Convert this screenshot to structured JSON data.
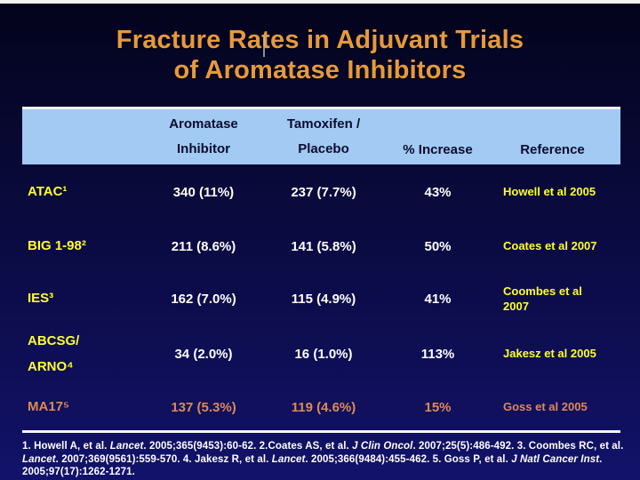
{
  "slide": {
    "title": "Fracture Rates in Adjuvant Trials\nof Aromatase Inhibitors"
  },
  "table": {
    "headers": {
      "trial": "",
      "ai": "Aromatase\nInhibitor",
      "tam": "Tamoxifen /\nPlacebo",
      "increase": "% Increase",
      "reference": "Reference"
    },
    "rows": [
      {
        "trial": "ATAC¹",
        "ai": "340 (11%)",
        "tam": "237 (7.7%)",
        "increase": "43%",
        "reference": "Howell et al 2005"
      },
      {
        "trial": "BIG 1-98²",
        "ai": "211 (8.6%)",
        "tam": "141 (5.8%)",
        "increase": "50%",
        "reference": "Coates et al 2007"
      },
      {
        "trial": "IES³",
        "ai": "162 (7.0%)",
        "tam": "115 (4.9%)",
        "increase": "41%",
        "reference": "Coombes et al 2007"
      },
      {
        "trial": "ABCSG/\nARNO⁴",
        "ai": "34 (2.0%)",
        "tam": "16 (1.0%)",
        "increase": "113%",
        "reference": "Jakesz et al 2005"
      },
      {
        "trial": "MA17⁵",
        "ai": "137 (5.3%)",
        "tam": "119 (4.6%)",
        "increase": "15%",
        "reference": "Goss et al 2005"
      }
    ]
  },
  "footnotes": {
    "segments": [
      {
        "text": "1. Howell A, et al. ",
        "italic": false
      },
      {
        "text": "Lancet",
        "italic": true
      },
      {
        "text": ". 2005;365(9453):60-62. 2.Coates AS, et al. ",
        "italic": false
      },
      {
        "text": "J Clin Oncol",
        "italic": true
      },
      {
        "text": ". 2007;25(5):486-492. 3. Coombes RC, et al. ",
        "italic": false
      },
      {
        "text": "Lancet",
        "italic": true
      },
      {
        "text": ". 2007;369(9561):559-570. 4. Jakesz R, et al. ",
        "italic": false
      },
      {
        "text": "Lancet",
        "italic": true
      },
      {
        "text": ". 2005;366(9484):455-462. 5. Goss P, et al. ",
        "italic": false
      },
      {
        "text": "J Natl Cancer Inst",
        "italic": true
      },
      {
        "text": ". 2005;97(17):1262-1271.",
        "italic": false
      }
    ]
  },
  "colors": {
    "title_orange": "#e69a3c",
    "row_label_yellow": "#ffff2e",
    "data_white": "#ffffff",
    "highlight_row_orange": "#df8a50",
    "header_bg_blue": "#a2caf2",
    "header_text_navy": "#0b0b30",
    "background_navy_top": "#03031c",
    "background_navy_bottom": "#12126a"
  }
}
